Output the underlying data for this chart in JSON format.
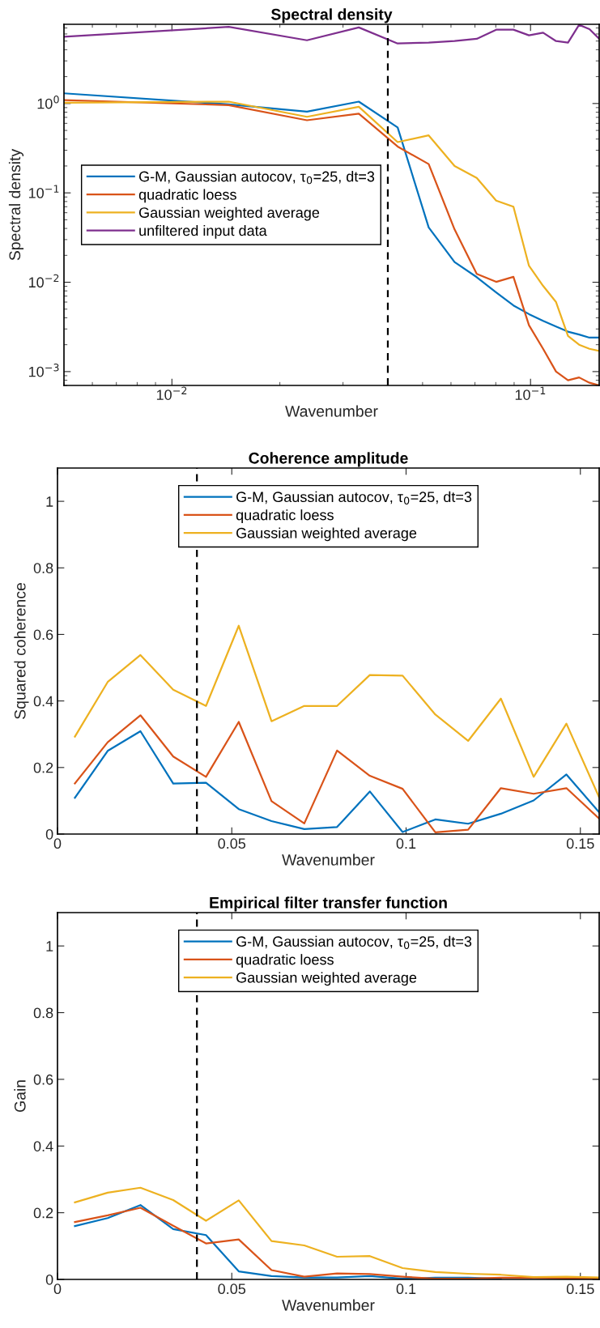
{
  "chart_data": [
    {
      "type": "line",
      "title": "Spectral density",
      "xlabel": "Wavenumber",
      "ylabel": "Spectral density",
      "log": "xy",
      "grid": false,
      "legend": "left",
      "x": [
        0.005,
        0.0144,
        0.0238,
        0.0332,
        0.0426,
        0.052,
        0.0614,
        0.0708,
        0.0802,
        0.0896,
        0.099,
        0.1084,
        0.1178,
        0.1272,
        0.1366,
        0.146,
        0.1554
      ],
      "xlim": [
        0.005,
        0.1554
      ],
      "xticks": [
        {
          "value": 0.01,
          "label": "10$^{−2}$"
        },
        {
          "value": 0.1,
          "label": "10$^{−1}$"
        }
      ],
      "ylim": [
        0.0007,
        7.7
      ],
      "yticks": [
        {
          "value": 0.001,
          "label": "10$^{−3}$"
        },
        {
          "value": 0.01,
          "label": "10$^{−2}$"
        },
        {
          "value": 0.1,
          "label": "10$^{−1}$"
        },
        {
          "value": 1,
          "label": "10$^{0}$"
        }
      ],
      "ref_lines": [
        {
          "axis": "x",
          "value": 0.04,
          "color": "#000000",
          "line_style": "dashed"
        }
      ],
      "series": [
        {
          "name": "G-M, Gaussian autocov, τ$_{0}$=25, dt=3",
          "color": "#0072bd",
          "values": [
            1.3,
            0.98,
            0.81,
            1.05,
            0.54,
            0.041,
            0.0168,
            0.0114,
            0.0077,
            0.0055,
            0.0044,
            0.0037,
            0.0032,
            0.0028,
            0.0026,
            0.0024,
            0.0024
          ]
        },
        {
          "name": "quadratic loess",
          "color": "#d95319",
          "values": [
            1.09,
            0.96,
            0.65,
            0.77,
            0.33,
            0.21,
            0.039,
            0.0124,
            0.0101,
            0.0115,
            0.0033,
            0.0018,
            0.001,
            0.0008,
            0.00086,
            0.00075,
            0.0007
          ]
        },
        {
          "name": "Gaussian weighted average",
          "color": "#edb120",
          "values": [
            1.02,
            1.05,
            0.71,
            0.92,
            0.37,
            0.44,
            0.2,
            0.147,
            0.082,
            0.07,
            0.0153,
            0.0091,
            0.006,
            0.0025,
            0.002,
            0.0018,
            0.0017
          ]
        },
        {
          "name": "unfiltered input data",
          "color": "#7e2f8e",
          "values": [
            5.6,
            7.2,
            5.1,
            7.1,
            4.7,
            4.8,
            5.0,
            5.3,
            6.7,
            6.7,
            5.8,
            6.2,
            5.0,
            4.8,
            7.6,
            6.8,
            5.3
          ]
        }
      ]
    },
    {
      "type": "line",
      "title": "Coherence amplitude",
      "xlabel": "Wavenumber",
      "ylabel": "Squared coherence",
      "grid": false,
      "legend": "top",
      "x": [
        0.005,
        0.0144,
        0.0238,
        0.0332,
        0.0426,
        0.052,
        0.0614,
        0.0708,
        0.0802,
        0.0896,
        0.099,
        0.1084,
        0.1178,
        0.1272,
        0.1366,
        0.146,
        0.1554
      ],
      "xlim": [
        0,
        0.1554
      ],
      "xticks": [
        0,
        0.05,
        0.1,
        0.15
      ],
      "ylim": [
        0,
        1.1
      ],
      "yticks": [
        0,
        0.2,
        0.4,
        0.6,
        0.8,
        1
      ],
      "ref_lines": [
        {
          "axis": "x",
          "value": 0.04,
          "color": "#000000",
          "line_style": "dashed"
        }
      ],
      "series": [
        {
          "name": "G-M, Gaussian autocov, τ$_{0}$=25, dt=3",
          "color": "#0072bd",
          "values": [
            0.109,
            0.25,
            0.309,
            0.152,
            0.154,
            0.075,
            0.039,
            0.015,
            0.021,
            0.128,
            0.006,
            0.044,
            0.031,
            0.061,
            0.101,
            0.179,
            0.065
          ]
        },
        {
          "name": "quadratic loess",
          "color": "#d95319",
          "values": [
            0.152,
            0.276,
            0.357,
            0.233,
            0.172,
            0.337,
            0.099,
            0.032,
            0.251,
            0.175,
            0.136,
            0.005,
            0.013,
            0.138,
            0.121,
            0.138,
            0.046
          ]
        },
        {
          "name": "Gaussian weighted average",
          "color": "#edb120",
          "values": [
            0.293,
            0.457,
            0.538,
            0.434,
            0.385,
            0.626,
            0.339,
            0.385,
            0.385,
            0.478,
            0.476,
            0.359,
            0.28,
            0.407,
            0.172,
            0.332,
            0.11
          ]
        }
      ]
    },
    {
      "type": "line",
      "title": "Empirical filter transfer function",
      "xlabel": "Wavenumber",
      "ylabel": "Gain",
      "grid": false,
      "legend": "top",
      "x": [
        0.005,
        0.0144,
        0.0238,
        0.0332,
        0.0426,
        0.052,
        0.0614,
        0.0708,
        0.0802,
        0.0896,
        0.099,
        0.1084,
        0.1178,
        0.1272,
        0.1366,
        0.146,
        0.1554
      ],
      "xlim": [
        0,
        0.1554
      ],
      "xticks": [
        0,
        0.05,
        0.1,
        0.15
      ],
      "ylim": [
        0,
        1.1
      ],
      "yticks": [
        0,
        0.2,
        0.4,
        0.6,
        0.8,
        1
      ],
      "ref_lines": [
        {
          "axis": "x",
          "value": 0.04,
          "color": "#000000",
          "line_style": "dashed"
        }
      ],
      "series": [
        {
          "name": "G-M, Gaussian autocov, τ$_{0}$=25, dt=3",
          "color": "#0072bd",
          "values": [
            0.16,
            0.184,
            0.223,
            0.151,
            0.133,
            0.024,
            0.01,
            0.006,
            0.006,
            0.01,
            0.002,
            0.005,
            0.005,
            0.002,
            null,
            null,
            null
          ]
        },
        {
          "name": "quadratic loess",
          "color": "#d95319",
          "values": [
            0.172,
            0.192,
            0.215,
            0.161,
            0.108,
            0.12,
            0.028,
            0.008,
            0.018,
            0.016,
            0.008,
            0.002,
            0.002,
            0.005,
            0.005,
            0.003,
            0.002
          ]
        },
        {
          "name": "Gaussian weighted average",
          "color": "#edb120",
          "values": [
            0.231,
            0.26,
            0.275,
            0.238,
            0.176,
            0.237,
            0.115,
            0.102,
            0.068,
            0.07,
            0.034,
            0.022,
            0.017,
            0.014,
            0.007,
            0.008,
            0.006
          ]
        }
      ]
    }
  ]
}
